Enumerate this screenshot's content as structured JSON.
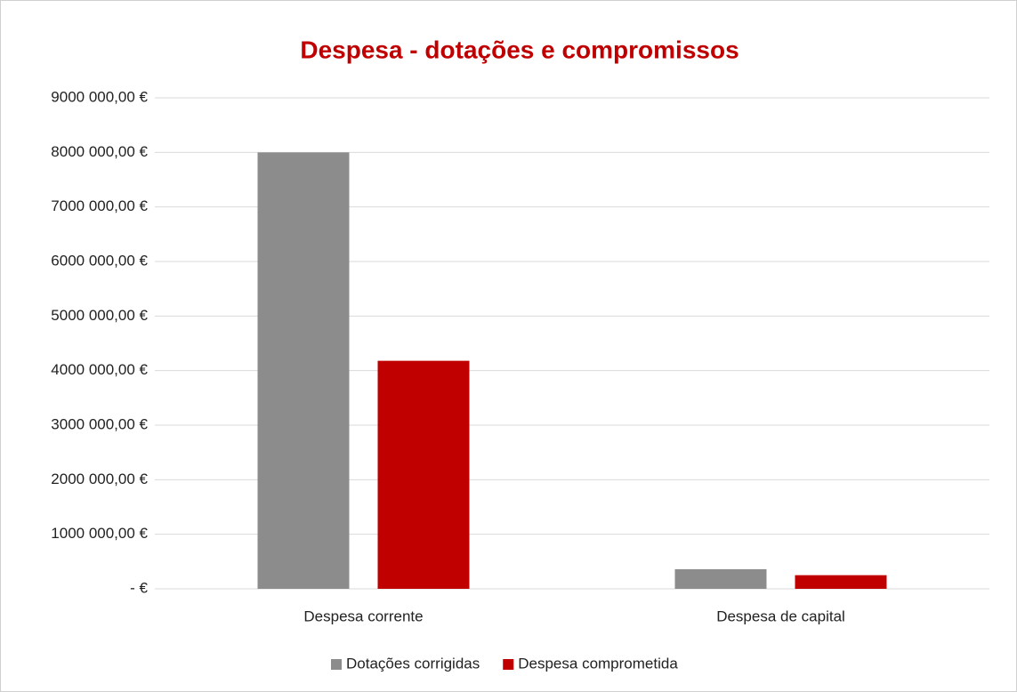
{
  "chart_data": {
    "type": "bar",
    "title": "Despesa - dotações e compromissos",
    "categories": [
      "Despesa corrente",
      "Despesa de capital"
    ],
    "series": [
      {
        "name": "Dotações corrigidas",
        "color": "#8c8c8c",
        "values": [
          8000000,
          360000
        ]
      },
      {
        "name": "Despesa comprometida",
        "color": "#c00000",
        "values": [
          4180000,
          250000
        ]
      }
    ],
    "ylim": [
      0,
      9000000
    ],
    "yticks": [
      {
        "value": 0,
        "label": "-  €"
      },
      {
        "value": 1000000,
        "label": "1000 000,00 €"
      },
      {
        "value": 2000000,
        "label": "2000 000,00 €"
      },
      {
        "value": 3000000,
        "label": "3000 000,00 €"
      },
      {
        "value": 4000000,
        "label": "4000 000,00 €"
      },
      {
        "value": 5000000,
        "label": "5000 000,00 €"
      },
      {
        "value": 6000000,
        "label": "6000 000,00 €"
      },
      {
        "value": 7000000,
        "label": "7000 000,00 €"
      },
      {
        "value": 8000000,
        "label": "8000 000,00 €"
      },
      {
        "value": 9000000,
        "label": "9000 000,00 €"
      }
    ],
    "grid": true,
    "legend": "bottom"
  }
}
